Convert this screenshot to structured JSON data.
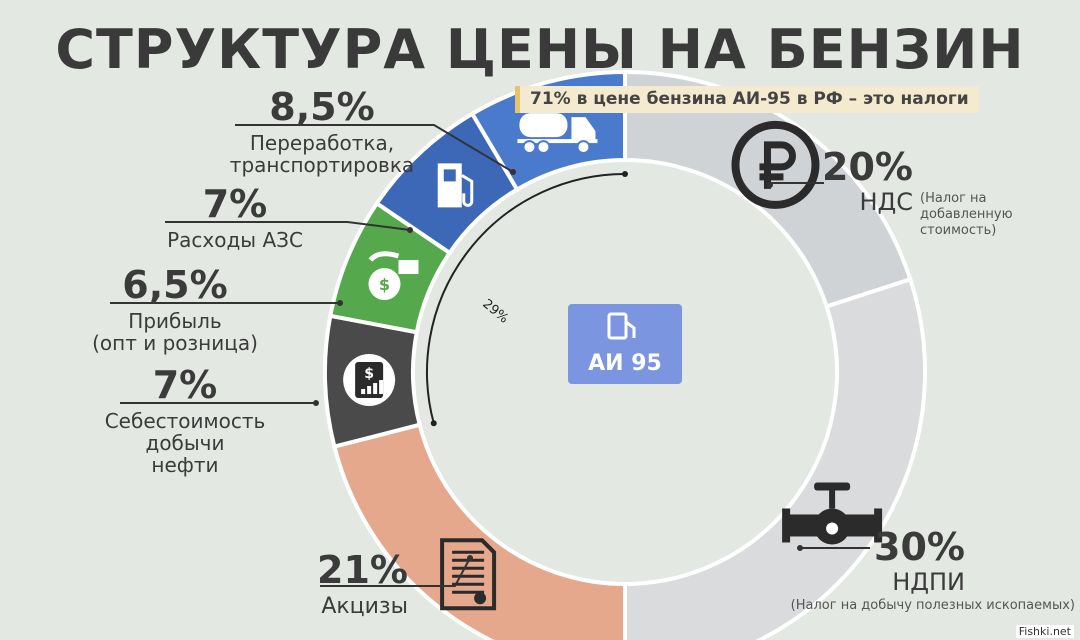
{
  "header": {
    "title": "СТРУКТУРА ЦЕНЫ НА БЕНЗИН",
    "subtitle": "71% в цене бензина АИ-95 в РФ – это налоги"
  },
  "center_badge": {
    "text": "АИ 95",
    "icon": "fuel-pump-icon"
  },
  "bracket_label": "29%",
  "credit": "Fishki.net",
  "colors": {
    "nds": "#cfd3d6",
    "ndpi": "#d9dbdd",
    "excise": "#e6a88c",
    "cost": "#4a4a4a",
    "profit": "#55a84b",
    "azs": "#3d68b7",
    "processing": "#4a7acb",
    "icon_dark": "#2b2b2b",
    "badge": "#7b95e0"
  },
  "chart_data": {
    "type": "pie",
    "title": "СТРУКТУРА ЦЕНЫ НА БЕНЗИН",
    "subtitle": "71% в цене бензина АИ-95 в РФ – это налоги",
    "slices": [
      {
        "key": "nds",
        "value": 20,
        "pct_label": "20%",
        "lines": [
          "НДС"
        ],
        "note": [
          "(Налог на",
          "добавленную",
          "стоимость)"
        ],
        "icon": "ruble-icon"
      },
      {
        "key": "ndpi",
        "value": 30,
        "pct_label": "30%",
        "lines": [
          "НДПИ"
        ],
        "note": [
          "(Налог на добычу полезных ископаемых)"
        ],
        "icon": "valve-pipe-icon"
      },
      {
        "key": "excise",
        "value": 21,
        "pct_label": "21%",
        "lines": [
          "Акцизы"
        ],
        "note": [],
        "icon": "document-icon"
      },
      {
        "key": "cost",
        "value": 7,
        "pct_label": "7%",
        "lines": [
          "Себестоимость",
          "добычи",
          "нефти"
        ],
        "note": [],
        "icon": "calculator-dollar-icon"
      },
      {
        "key": "profit",
        "value": 6.5,
        "pct_label": "6,5%",
        "lines": [
          "Прибыль",
          "(опт и розница)"
        ],
        "note": [],
        "icon": "money-bag-icon"
      },
      {
        "key": "azs",
        "value": 7,
        "pct_label": "7%",
        "lines": [
          "Расходы АЗС"
        ],
        "note": [],
        "icon": "fuel-pump-icon"
      },
      {
        "key": "processing",
        "value": 8.5,
        "pct_label": "8,5%",
        "lines": [
          "Переработка,",
          "транспортировка"
        ],
        "note": [],
        "icon": "tanker-truck-icon"
      }
    ]
  }
}
